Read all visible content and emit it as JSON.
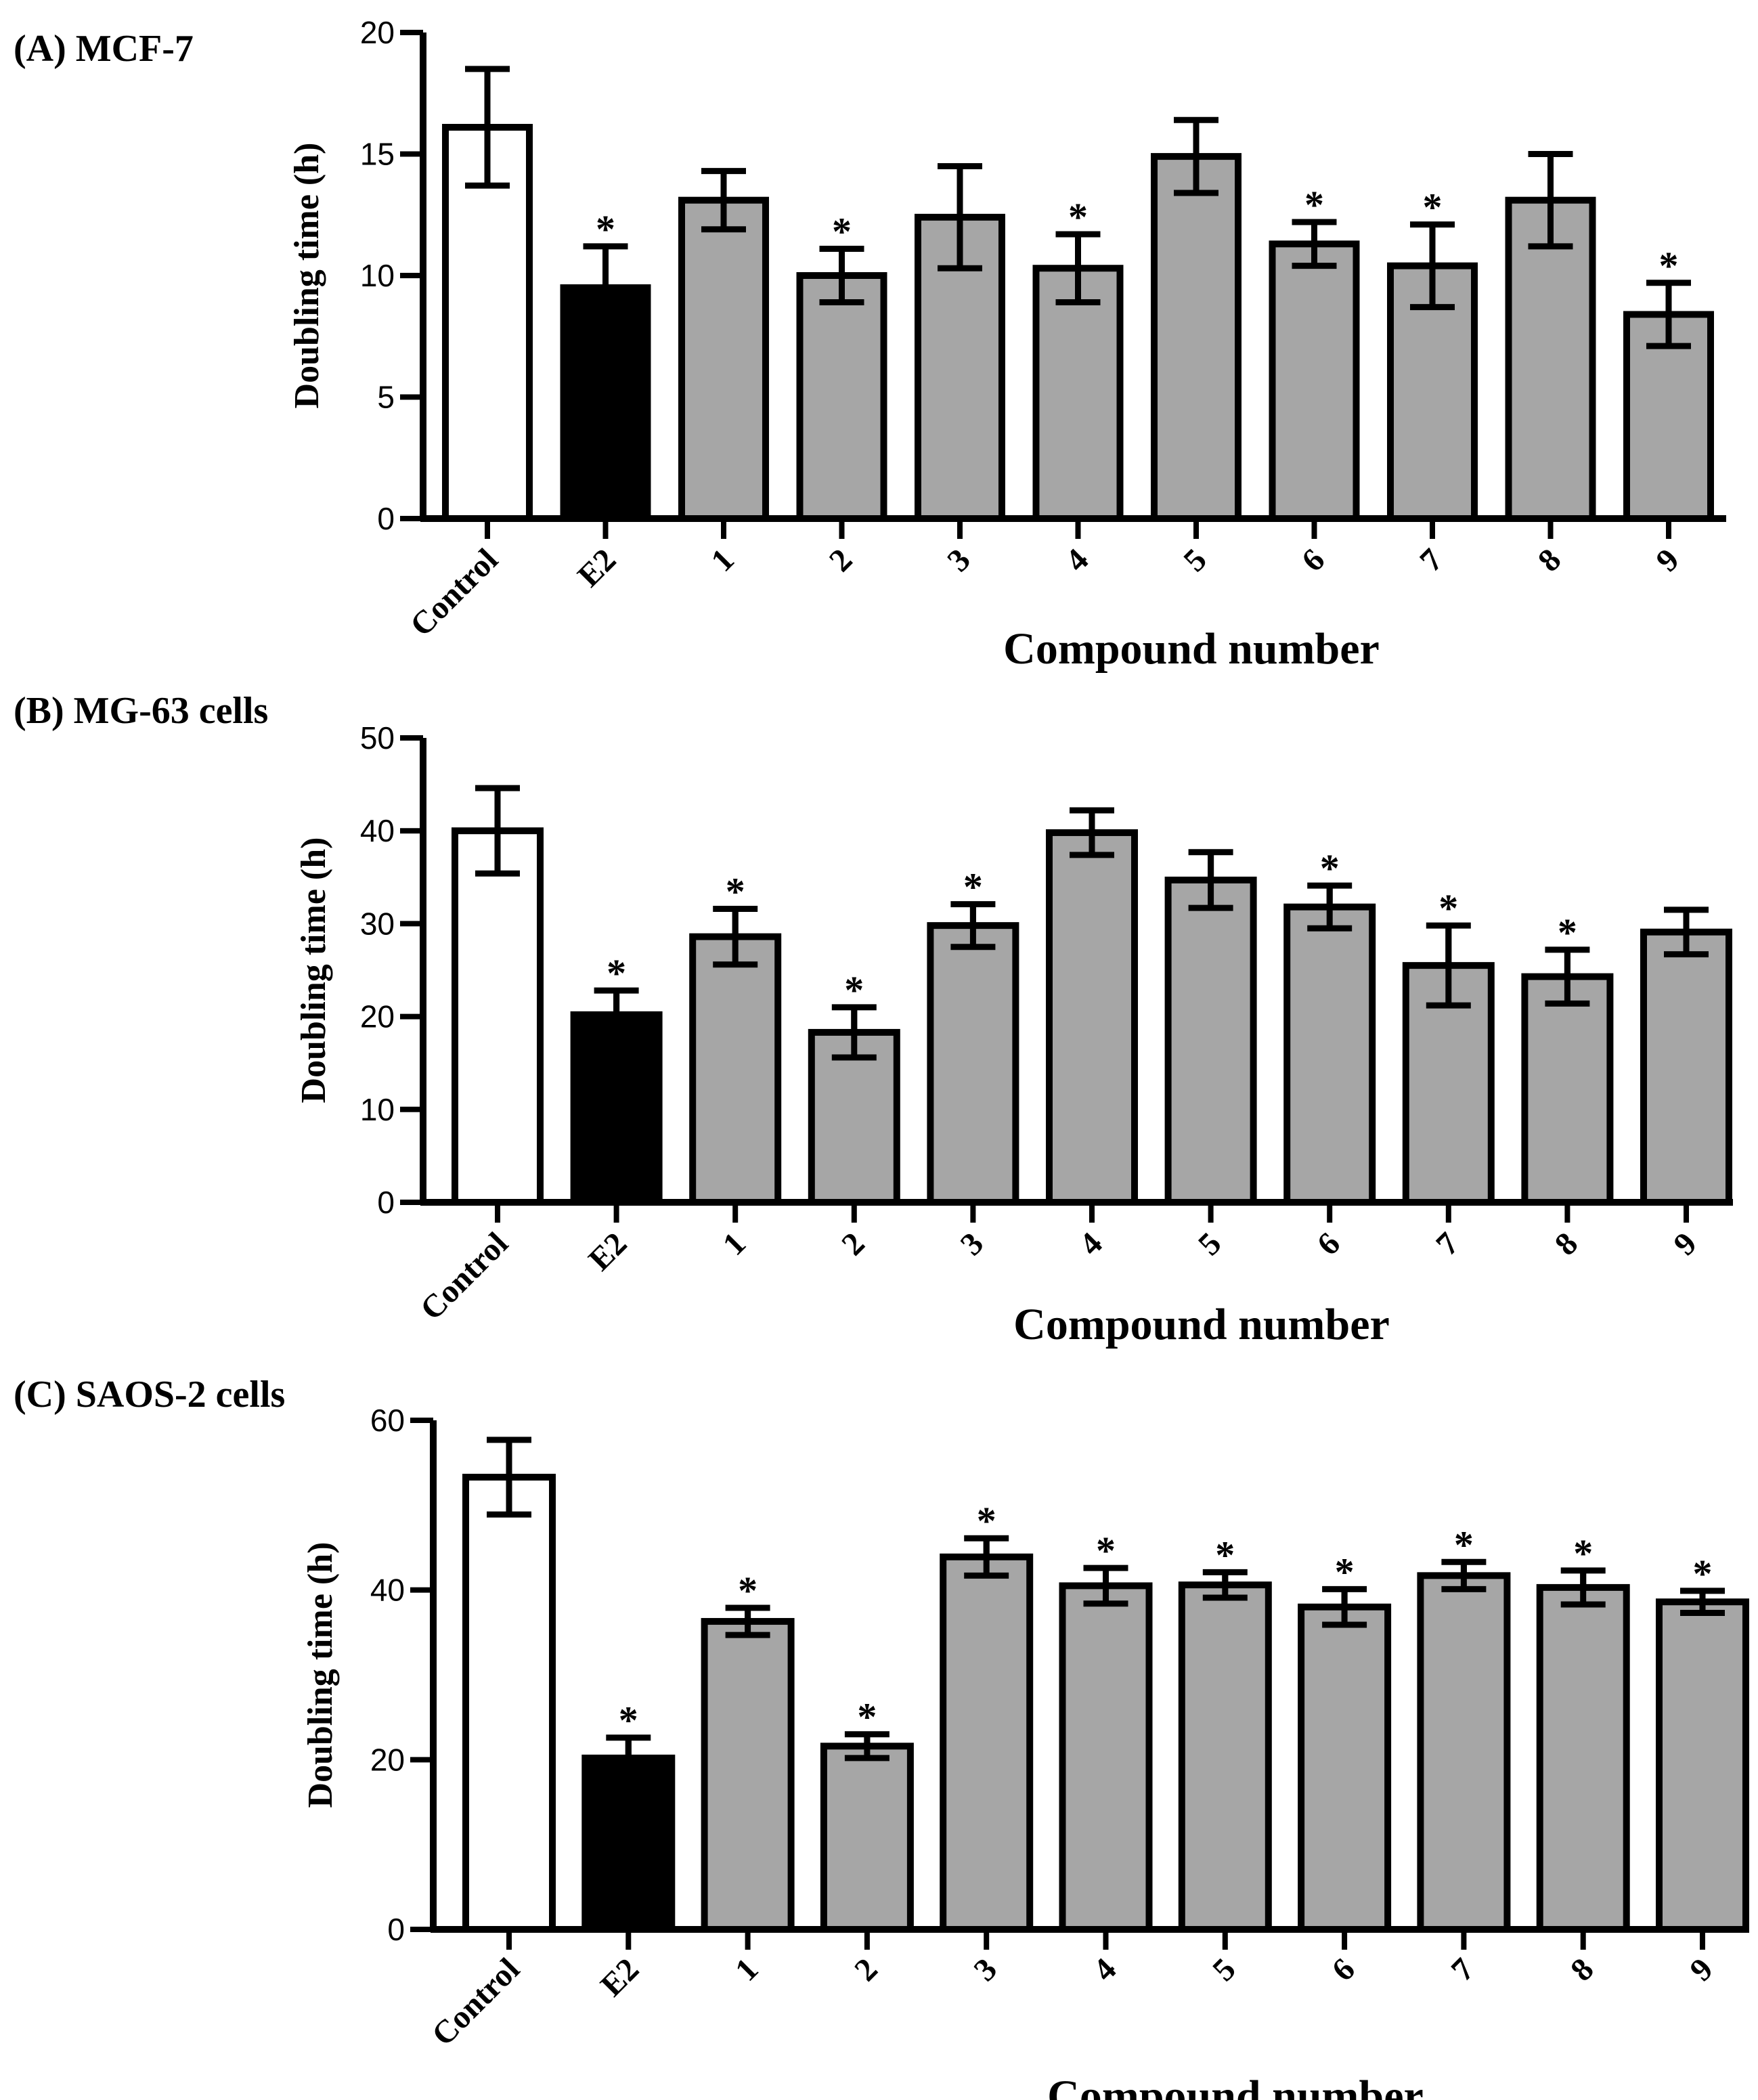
{
  "chart_data": [
    {
      "type": "bar",
      "panel": "(A) MCF-7",
      "xlabel": "Compound number",
      "ylabel": "Doubling time (h)",
      "ylim": [
        0,
        20
      ],
      "yticks": [
        0,
        5,
        10,
        15,
        20
      ],
      "categories": [
        "Control",
        "E2",
        "1",
        "2",
        "3",
        "4",
        "5",
        "6",
        "7",
        "8",
        "9"
      ],
      "fills": [
        "#ffffff",
        "#000000",
        "#a6a6a6",
        "#a6a6a6",
        "#a6a6a6",
        "#a6a6a6",
        "#a6a6a6",
        "#a6a6a6",
        "#a6a6a6",
        "#a6a6a6",
        "#a6a6a6"
      ],
      "values": [
        16.1,
        9.5,
        13.1,
        10.0,
        12.4,
        10.3,
        14.9,
        11.3,
        10.4,
        13.1,
        8.4
      ],
      "errors": [
        2.4,
        1.7,
        1.2,
        1.1,
        2.1,
        1.4,
        1.5,
        0.9,
        1.7,
        1.9,
        1.3
      ],
      "significant": [
        false,
        true,
        false,
        true,
        false,
        true,
        false,
        true,
        true,
        false,
        true
      ],
      "star_symbol": "*"
    },
    {
      "type": "bar",
      "panel": "(B) MG-63 cells",
      "xlabel": "Compound number",
      "ylabel": "Doubling time (h)",
      "ylim": [
        0,
        50
      ],
      "yticks": [
        0,
        10,
        20,
        30,
        40,
        50
      ],
      "categories": [
        "Control",
        "E2",
        "1",
        "2",
        "3",
        "4",
        "5",
        "6",
        "7",
        "8",
        "9"
      ],
      "fills": [
        "#ffffff",
        "#000000",
        "#a6a6a6",
        "#a6a6a6",
        "#a6a6a6",
        "#a6a6a6",
        "#a6a6a6",
        "#a6a6a6",
        "#a6a6a6",
        "#a6a6a6",
        "#a6a6a6"
      ],
      "values": [
        40.0,
        20.2,
        28.6,
        18.3,
        29.8,
        39.8,
        34.7,
        31.8,
        25.5,
        24.3,
        29.1
      ],
      "errors": [
        4.6,
        2.6,
        3.0,
        2.7,
        2.3,
        2.4,
        3.0,
        2.3,
        4.3,
        2.9,
        2.4
      ],
      "significant": [
        false,
        true,
        true,
        true,
        true,
        false,
        false,
        true,
        true,
        true,
        false
      ],
      "star_symbol": "*"
    },
    {
      "type": "bar",
      "panel": "(C) SAOS-2 cells",
      "xlabel": "Compound number",
      "ylabel": "Doubling time (h)",
      "ylim": [
        0,
        60
      ],
      "yticks": [
        0,
        20,
        40,
        60
      ],
      "categories": [
        "Control",
        "E2",
        "1",
        "2",
        "3",
        "4",
        "5",
        "6",
        "7",
        "8",
        "9"
      ],
      "fills": [
        "#ffffff",
        "#000000",
        "#a6a6a6",
        "#a6a6a6",
        "#a6a6a6",
        "#a6a6a6",
        "#a6a6a6",
        "#a6a6a6",
        "#a6a6a6",
        "#a6a6a6",
        "#a6a6a6"
      ],
      "values": [
        53.3,
        20.2,
        36.3,
        21.6,
        43.9,
        40.5,
        40.6,
        38.0,
        41.7,
        40.3,
        38.6
      ],
      "errors": [
        4.4,
        2.4,
        1.6,
        1.4,
        2.2,
        2.1,
        1.5,
        2.1,
        1.6,
        2.0,
        1.3
      ],
      "significant": [
        false,
        true,
        true,
        true,
        true,
        true,
        true,
        true,
        true,
        true,
        true
      ],
      "star_symbol": "*"
    }
  ]
}
